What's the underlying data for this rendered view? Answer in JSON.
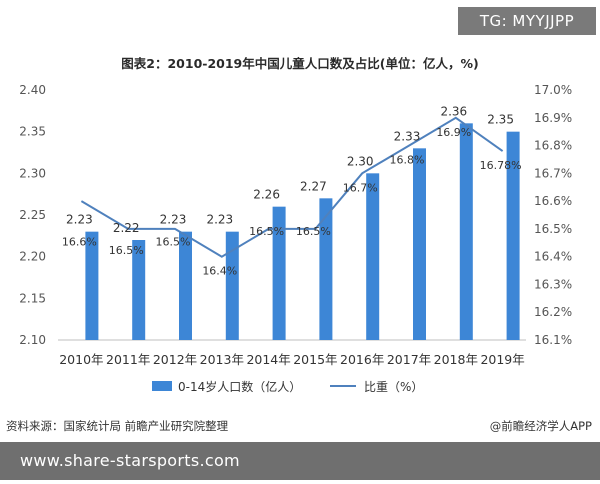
{
  "badge": "TG: MYYJJPP",
  "footer": {
    "source": "资料来源：国家统计局 前瞻产业研究院整理",
    "brand": "@前瞻经济学人APP"
  },
  "watermark": "www.share-starsports.com",
  "chart_data": {
    "type": "bar",
    "title": "图表2：2010-2019年中国儿童人口数及占比(单位：亿人，%)",
    "categories": [
      "2010年",
      "2011年",
      "2012年",
      "2013年",
      "2014年",
      "2015年",
      "2016年",
      "2017年",
      "2018年",
      "2019年"
    ],
    "series": [
      {
        "name": "0-14岁人口数（亿人）",
        "type": "bar",
        "axis": "left",
        "values": [
          2.23,
          2.22,
          2.23,
          2.23,
          2.26,
          2.27,
          2.3,
          2.33,
          2.36,
          2.35
        ],
        "labels": [
          "2.23",
          "2.22",
          "2.23",
          "2.23",
          "2.26",
          "2.27",
          "2.30",
          "2.33",
          "2.36",
          "2.35"
        ]
      },
      {
        "name": "比重（%）",
        "type": "line",
        "axis": "right",
        "values": [
          16.6,
          16.5,
          16.5,
          16.4,
          16.5,
          16.5,
          16.7,
          16.8,
          16.9,
          16.78
        ],
        "labels": [
          "16.6%",
          "16.5%",
          "16.5%",
          "16.4%",
          "16.5%",
          "16.5%",
          "16.7%",
          "16.8%",
          "16.9%",
          "16.78%"
        ]
      }
    ],
    "y_left": {
      "min": 2.1,
      "max": 2.4,
      "ticks": [
        "2.10",
        "2.15",
        "2.20",
        "2.25",
        "2.30",
        "2.35",
        "2.40"
      ]
    },
    "y_right": {
      "min": 16.1,
      "max": 17.0,
      "ticks": [
        "16.1%",
        "16.2%",
        "16.3%",
        "16.4%",
        "16.5%",
        "16.6%",
        "16.7%",
        "16.8%",
        "16.9%",
        "17.0%"
      ]
    },
    "grid": false,
    "legend": "bottom",
    "colors": {
      "bar": "#3d86d6",
      "line": "#4f81bd"
    }
  }
}
